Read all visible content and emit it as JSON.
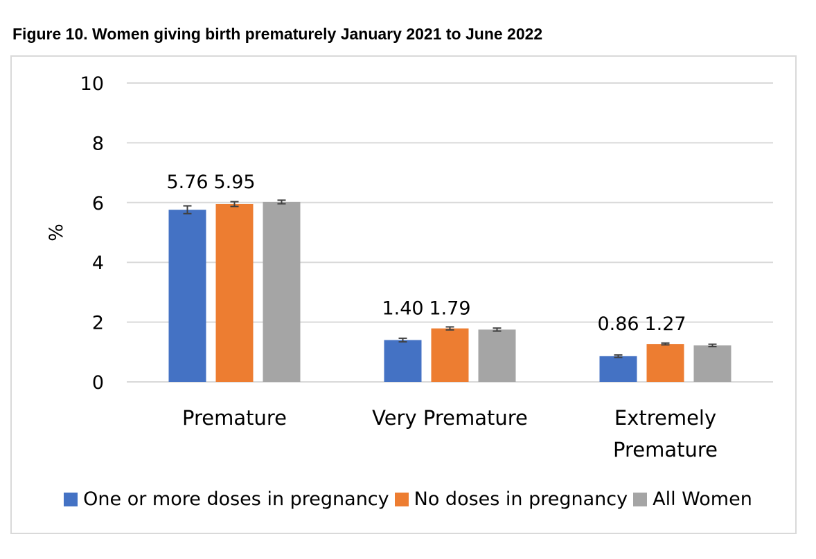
{
  "figure_title": "Figure 10. Women giving birth prematurely January 2021 to June 2022",
  "colors": {
    "series_0": "#4472c4",
    "series_1": "#ed7d31",
    "series_2": "#a5a5a5",
    "grid": "#d9d9d9",
    "error_bar": "#404040"
  },
  "chart_data": {
    "type": "bar",
    "title": "",
    "xlabel": "",
    "ylabel": "%",
    "ylim": [
      0,
      10
    ],
    "yticks": [
      "0",
      "2",
      "4",
      "6",
      "8",
      "10"
    ],
    "grid": true,
    "legend_position": "bottom",
    "categories": [
      [
        "Premature"
      ],
      [
        "Very Premature"
      ],
      [
        "Extremely",
        "Premature"
      ]
    ],
    "series": [
      {
        "name": "One or more doses in pregnancy",
        "values": [
          5.76,
          1.4,
          0.86
        ],
        "labels": [
          "5.76",
          "1.40",
          "0.86"
        ],
        "error": [
          0.13,
          0.06,
          0.04
        ]
      },
      {
        "name": "No doses in pregnancy",
        "values": [
          5.95,
          1.79,
          1.27
        ],
        "labels": [
          "5.95",
          "1.79",
          "1.27"
        ],
        "error": [
          0.08,
          0.05,
          0.03
        ]
      },
      {
        "name": "All Women",
        "values": [
          6.02,
          1.75,
          1.22
        ],
        "labels": [
          "",
          "",
          ""
        ],
        "error": [
          0.06,
          0.05,
          0.04
        ]
      }
    ]
  }
}
